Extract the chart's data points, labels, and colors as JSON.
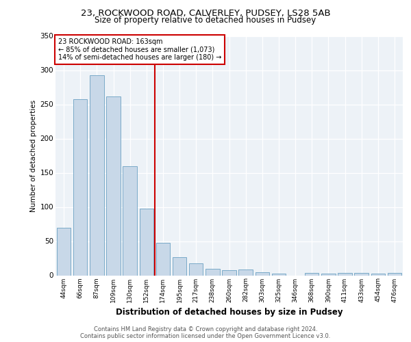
{
  "title_line1": "23, ROCKWOOD ROAD, CALVERLEY, PUDSEY, LS28 5AB",
  "title_line2": "Size of property relative to detached houses in Pudsey",
  "xlabel": "Distribution of detached houses by size in Pudsey",
  "ylabel": "Number of detached properties",
  "footer_line1": "Contains HM Land Registry data © Crown copyright and database right 2024.",
  "footer_line2": "Contains public sector information licensed under the Open Government Licence v3.0.",
  "categories": [
    "44sqm",
    "66sqm",
    "87sqm",
    "109sqm",
    "130sqm",
    "152sqm",
    "174sqm",
    "195sqm",
    "217sqm",
    "238sqm",
    "260sqm",
    "282sqm",
    "303sqm",
    "325sqm",
    "346sqm",
    "368sqm",
    "390sqm",
    "411sqm",
    "433sqm",
    "454sqm",
    "476sqm"
  ],
  "values": [
    70,
    258,
    293,
    262,
    160,
    98,
    48,
    27,
    18,
    10,
    8,
    9,
    5,
    3,
    0,
    4,
    3,
    4,
    4,
    3,
    4
  ],
  "bar_color": "#c8d8e8",
  "bar_edge_color": "#7aaac8",
  "marker_line_color": "#cc0000",
  "annotation_line1": "23 ROCKWOOD ROAD: 163sqm",
  "annotation_line2": "← 85% of detached houses are smaller (1,073)",
  "annotation_line3": "14% of semi-detached houses are larger (180) →",
  "annotation_box_color": "#ffffff",
  "annotation_box_edge_color": "#cc0000",
  "ylim": [
    0,
    350
  ],
  "yticks": [
    0,
    50,
    100,
    150,
    200,
    250,
    300,
    350
  ],
  "plot_bg_color": "#edf2f7"
}
